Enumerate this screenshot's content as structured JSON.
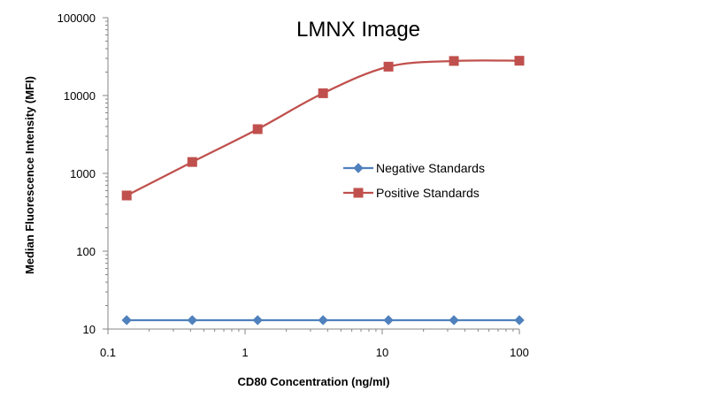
{
  "chart_data": {
    "type": "line",
    "title": "LMNX Image",
    "xlabel": "CD80 Concentration (ng/ml)",
    "ylabel": "Median Fluorescence Intensity (MFI)",
    "x_scale": "log",
    "y_scale": "log",
    "xlim": [
      0.1,
      100
    ],
    "ylim": [
      10,
      100000
    ],
    "x_ticks": [
      "0.1",
      "1",
      "10",
      "100"
    ],
    "y_ticks": [
      "10",
      "100",
      "1000",
      "10000",
      "100000"
    ],
    "x": [
      0.137,
      0.412,
      1.235,
      3.704,
      11.11,
      33.33,
      100
    ],
    "series": [
      {
        "name": "Negative Standards",
        "color": "#4f81bd",
        "marker": "diamond",
        "values": [
          13,
          13,
          13,
          13,
          13,
          13,
          13
        ]
      },
      {
        "name": "Positive Standards",
        "color": "#c0504d",
        "marker": "square",
        "values": [
          520,
          1400,
          3700,
          10700,
          23500,
          27800,
          28000
        ]
      }
    ],
    "legend": "right-middle",
    "grid": false,
    "smooth": true
  }
}
